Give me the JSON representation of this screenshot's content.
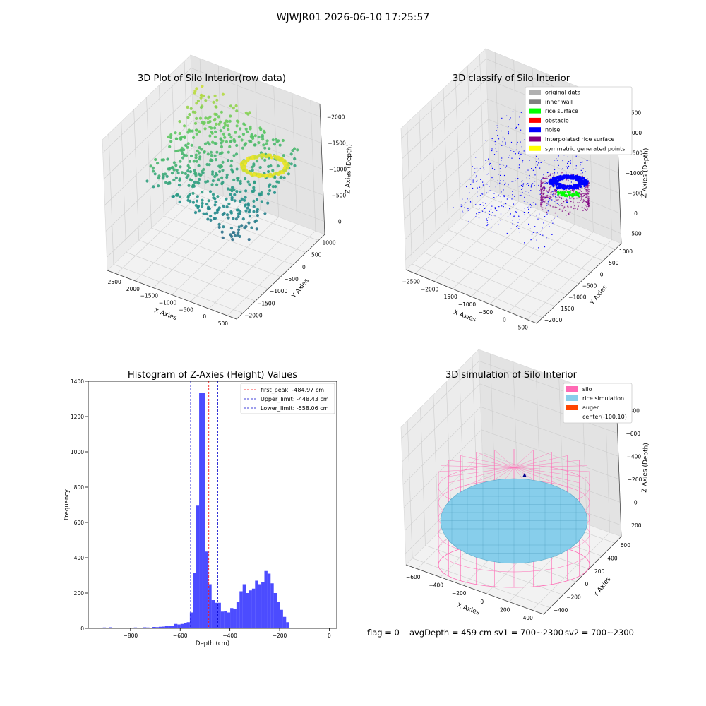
{
  "suptitle": "WJWJR01 2026-06-10 17:25:57",
  "footer": {
    "flag": "flag = 0",
    "avg_depth": "avgDepth = 459 cm",
    "sv1": "sv1 = 700~2300",
    "sv2": "sv2 = 700~2300"
  },
  "colors": {
    "hist_bar": "#0000ff",
    "peak_line": "#ff0000",
    "limit_line": "#0000cc",
    "silo": "#ff69b4",
    "rice": "#87ceeb",
    "auger": "#ff4500",
    "original": "#b0b0b0",
    "inner_wall": "#808080",
    "rice_surface": "#00ff00",
    "obstacle": "#ff0000",
    "noise": "#0000ff",
    "interpolated": "#800080",
    "symmetric": "#ffff00"
  },
  "chart_data": [
    {
      "type": "scatter",
      "subtype": "3d",
      "title": "3D Plot of Silo Interior(row data)",
      "xlabel": "X Axies",
      "ylabel": "Y Axies",
      "zlabel": "Z Axies (Depth)",
      "x_ticks": [
        "−2500",
        "−2000",
        "−1500",
        "−1000",
        "−500",
        "0",
        "500"
      ],
      "y_ticks": [
        "1000",
        "500",
        "0",
        "−500",
        "−1000",
        "−1500",
        "−2000"
      ],
      "z_ticks": [
        "0",
        "−500",
        "−1000",
        "−1500",
        "−2000"
      ],
      "xlim": [
        -2800,
        600
      ],
      "ylim": [
        -2100,
        1200
      ],
      "zlim": [
        -2300,
        100
      ],
      "colormap": "viridis (by depth)",
      "grid": true
    },
    {
      "type": "scatter",
      "subtype": "3d",
      "title": "3D classify of Silo Interior",
      "xlabel": "X Axies",
      "ylabel": "Y Axies",
      "zlabel": "Z Axies (Depth)",
      "x_ticks": [
        "−2500",
        "−2000",
        "−1500",
        "−1000",
        "−500",
        "0",
        "500"
      ],
      "y_ticks": [
        "1000",
        "500",
        "0",
        "−500",
        "−1000",
        "−1500",
        "−2000"
      ],
      "z_ticks": [
        "500",
        "0",
        "−500",
        "−1000",
        "−1500",
        "−2000",
        "−2500"
      ],
      "legend": [
        "original data",
        "inner wall",
        "rice surface",
        "obstacle",
        "noise",
        "interpolated rice surface",
        "symmetric generated points"
      ],
      "legend_placement": "top-right",
      "grid": true
    },
    {
      "type": "bar",
      "subtype": "histogram",
      "title": "Histogram of Z-Axies (Height) Values",
      "xlabel": "Depth (cm)",
      "ylabel": "Frequency",
      "xlim": [
        -970,
        30
      ],
      "ylim": [
        0,
        1400
      ],
      "x_ticks": [
        -800,
        -600,
        -400,
        -200,
        0
      ],
      "x_tick_labels": [
        "−800",
        "−600",
        "−400",
        "−200",
        "0"
      ],
      "y_ticks": [
        0,
        200,
        400,
        600,
        800,
        1000,
        1200,
        1400
      ],
      "bin_width": 12.5,
      "bins": [
        [
          -905,
          5
        ],
        [
          -880,
          6
        ],
        [
          -867.5,
          2
        ],
        [
          -855,
          3
        ],
        [
          -842.5,
          4
        ],
        [
          -830,
          3
        ],
        [
          -817.5,
          2
        ],
        [
          -805,
          4
        ],
        [
          -792.5,
          3
        ],
        [
          -780,
          5
        ],
        [
          -767.5,
          4
        ],
        [
          -755,
          3
        ],
        [
          -742.5,
          6
        ],
        [
          -730,
          5
        ],
        [
          -717.5,
          4
        ],
        [
          -705,
          8
        ],
        [
          -692.5,
          7
        ],
        [
          -680,
          9
        ],
        [
          -667.5,
          10
        ],
        [
          -655,
          12
        ],
        [
          -642.5,
          14
        ],
        [
          -630,
          15
        ],
        [
          -617.5,
          25
        ],
        [
          -605,
          22
        ],
        [
          -592.5,
          25
        ],
        [
          -580,
          28
        ],
        [
          -567.5,
          35
        ],
        [
          -555,
          90
        ],
        [
          -542.5,
          315
        ],
        [
          -530,
          695
        ],
        [
          -517.5,
          1335
        ],
        [
          -505,
          1335
        ],
        [
          -492.5,
          435
        ],
        [
          -480,
          250
        ],
        [
          -467.5,
          160
        ],
        [
          -455,
          145
        ],
        [
          -442.5,
          145
        ],
        [
          -430,
          95
        ],
        [
          -417.5,
          100
        ],
        [
          -405,
          90
        ],
        [
          -392.5,
          115
        ],
        [
          -380,
          110
        ],
        [
          -367.5,
          150
        ],
        [
          -355,
          210
        ],
        [
          -342.5,
          250
        ],
        [
          -330,
          200
        ],
        [
          -317.5,
          215
        ],
        [
          -305,
          225
        ],
        [
          -292.5,
          270
        ],
        [
          -280,
          250
        ],
        [
          -267.5,
          260
        ],
        [
          -255,
          325
        ],
        [
          -242.5,
          310
        ],
        [
          -230,
          255
        ],
        [
          -217.5,
          200
        ],
        [
          -205,
          150
        ],
        [
          -192.5,
          105
        ],
        [
          -180,
          65
        ],
        [
          -167.5,
          35
        ]
      ],
      "vlines": [
        {
          "label": "first_peak: -484.97 cm",
          "x": -484.97,
          "color": "#ff0000"
        },
        {
          "label": "Upper_limit: -448.43 cm",
          "x": -448.43,
          "color": "#0000cc"
        },
        {
          "label": "Lower_limit: -558.06 cm",
          "x": -558.06,
          "color": "#0000cc"
        }
      ],
      "legend_placement": "top-right"
    },
    {
      "type": "scatter",
      "subtype": "3d surface",
      "title": "3D simulation of Silo Interior",
      "xlabel": "X Axies",
      "ylabel": "Y Axies",
      "zlabel": "Z Axies (Depth)",
      "x_ticks": [
        "−600",
        "−400",
        "−200",
        "0",
        "200",
        "400"
      ],
      "y_ticks": [
        "600",
        "400",
        "200",
        "0",
        "−200",
        "−400"
      ],
      "z_ticks": [
        "200",
        "0",
        "−200",
        "−400",
        "−600",
        "−800"
      ],
      "legend": [
        "silo",
        "rice simulation",
        "auger",
        "center(-100,10)"
      ],
      "legend_placement": "top-right",
      "grid": true
    }
  ]
}
